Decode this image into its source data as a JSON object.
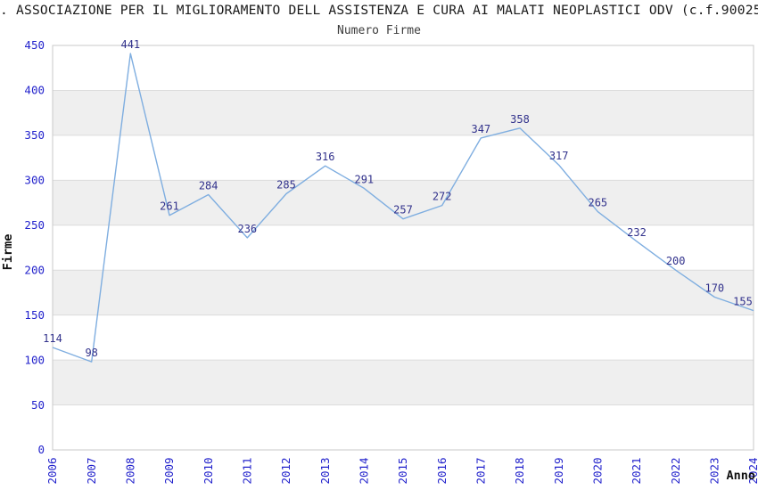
{
  "header": {
    "title": ". ASSOCIAZIONE PER IL MIGLIORAMENTO DELL ASSISTENZA E CURA AI MALATI NEOPLASTICI ODV (c.f.90025",
    "subtitle": "Numero Firme"
  },
  "chart_data": {
    "type": "line",
    "title": ". ASSOCIAZIONE PER IL MIGLIORAMENTO DELL ASSISTENZA E CURA AI MALATI NEOPLASTICI ODV (c.f.90025",
    "subtitle": "Numero Firme",
    "xlabel": "Anno",
    "ylabel": "Firme",
    "categories": [
      "2006",
      "2007",
      "2008",
      "2009",
      "2010",
      "2011",
      "2012",
      "2013",
      "2014",
      "2015",
      "2016",
      "2017",
      "2018",
      "2019",
      "2020",
      "2021",
      "2022",
      "2023",
      "2024"
    ],
    "values": [
      114,
      98,
      441,
      261,
      284,
      236,
      285,
      316,
      291,
      257,
      272,
      347,
      358,
      317,
      265,
      232,
      200,
      170,
      155
    ],
    "data_labels_shown": true,
    "ylim": [
      0,
      450
    ],
    "ytick_step": 50,
    "yticks": [
      0,
      50,
      100,
      150,
      200,
      250,
      300,
      350,
      400,
      450
    ],
    "grid": "horizontal-bands-alternating",
    "legend": "none",
    "x_tick_rotation": -90,
    "colors": {
      "line": "#7FAEE0",
      "data_label": "#32328C",
      "tick_label": "#2323CC",
      "band": "#EFEFEF",
      "gridline": "#DCDCDC",
      "border": "#C9C9C9",
      "axis_title": "#111111",
      "title": "#1A1A1A",
      "subtitle": "#3C3C3C",
      "background": "#FFFFFF"
    }
  }
}
